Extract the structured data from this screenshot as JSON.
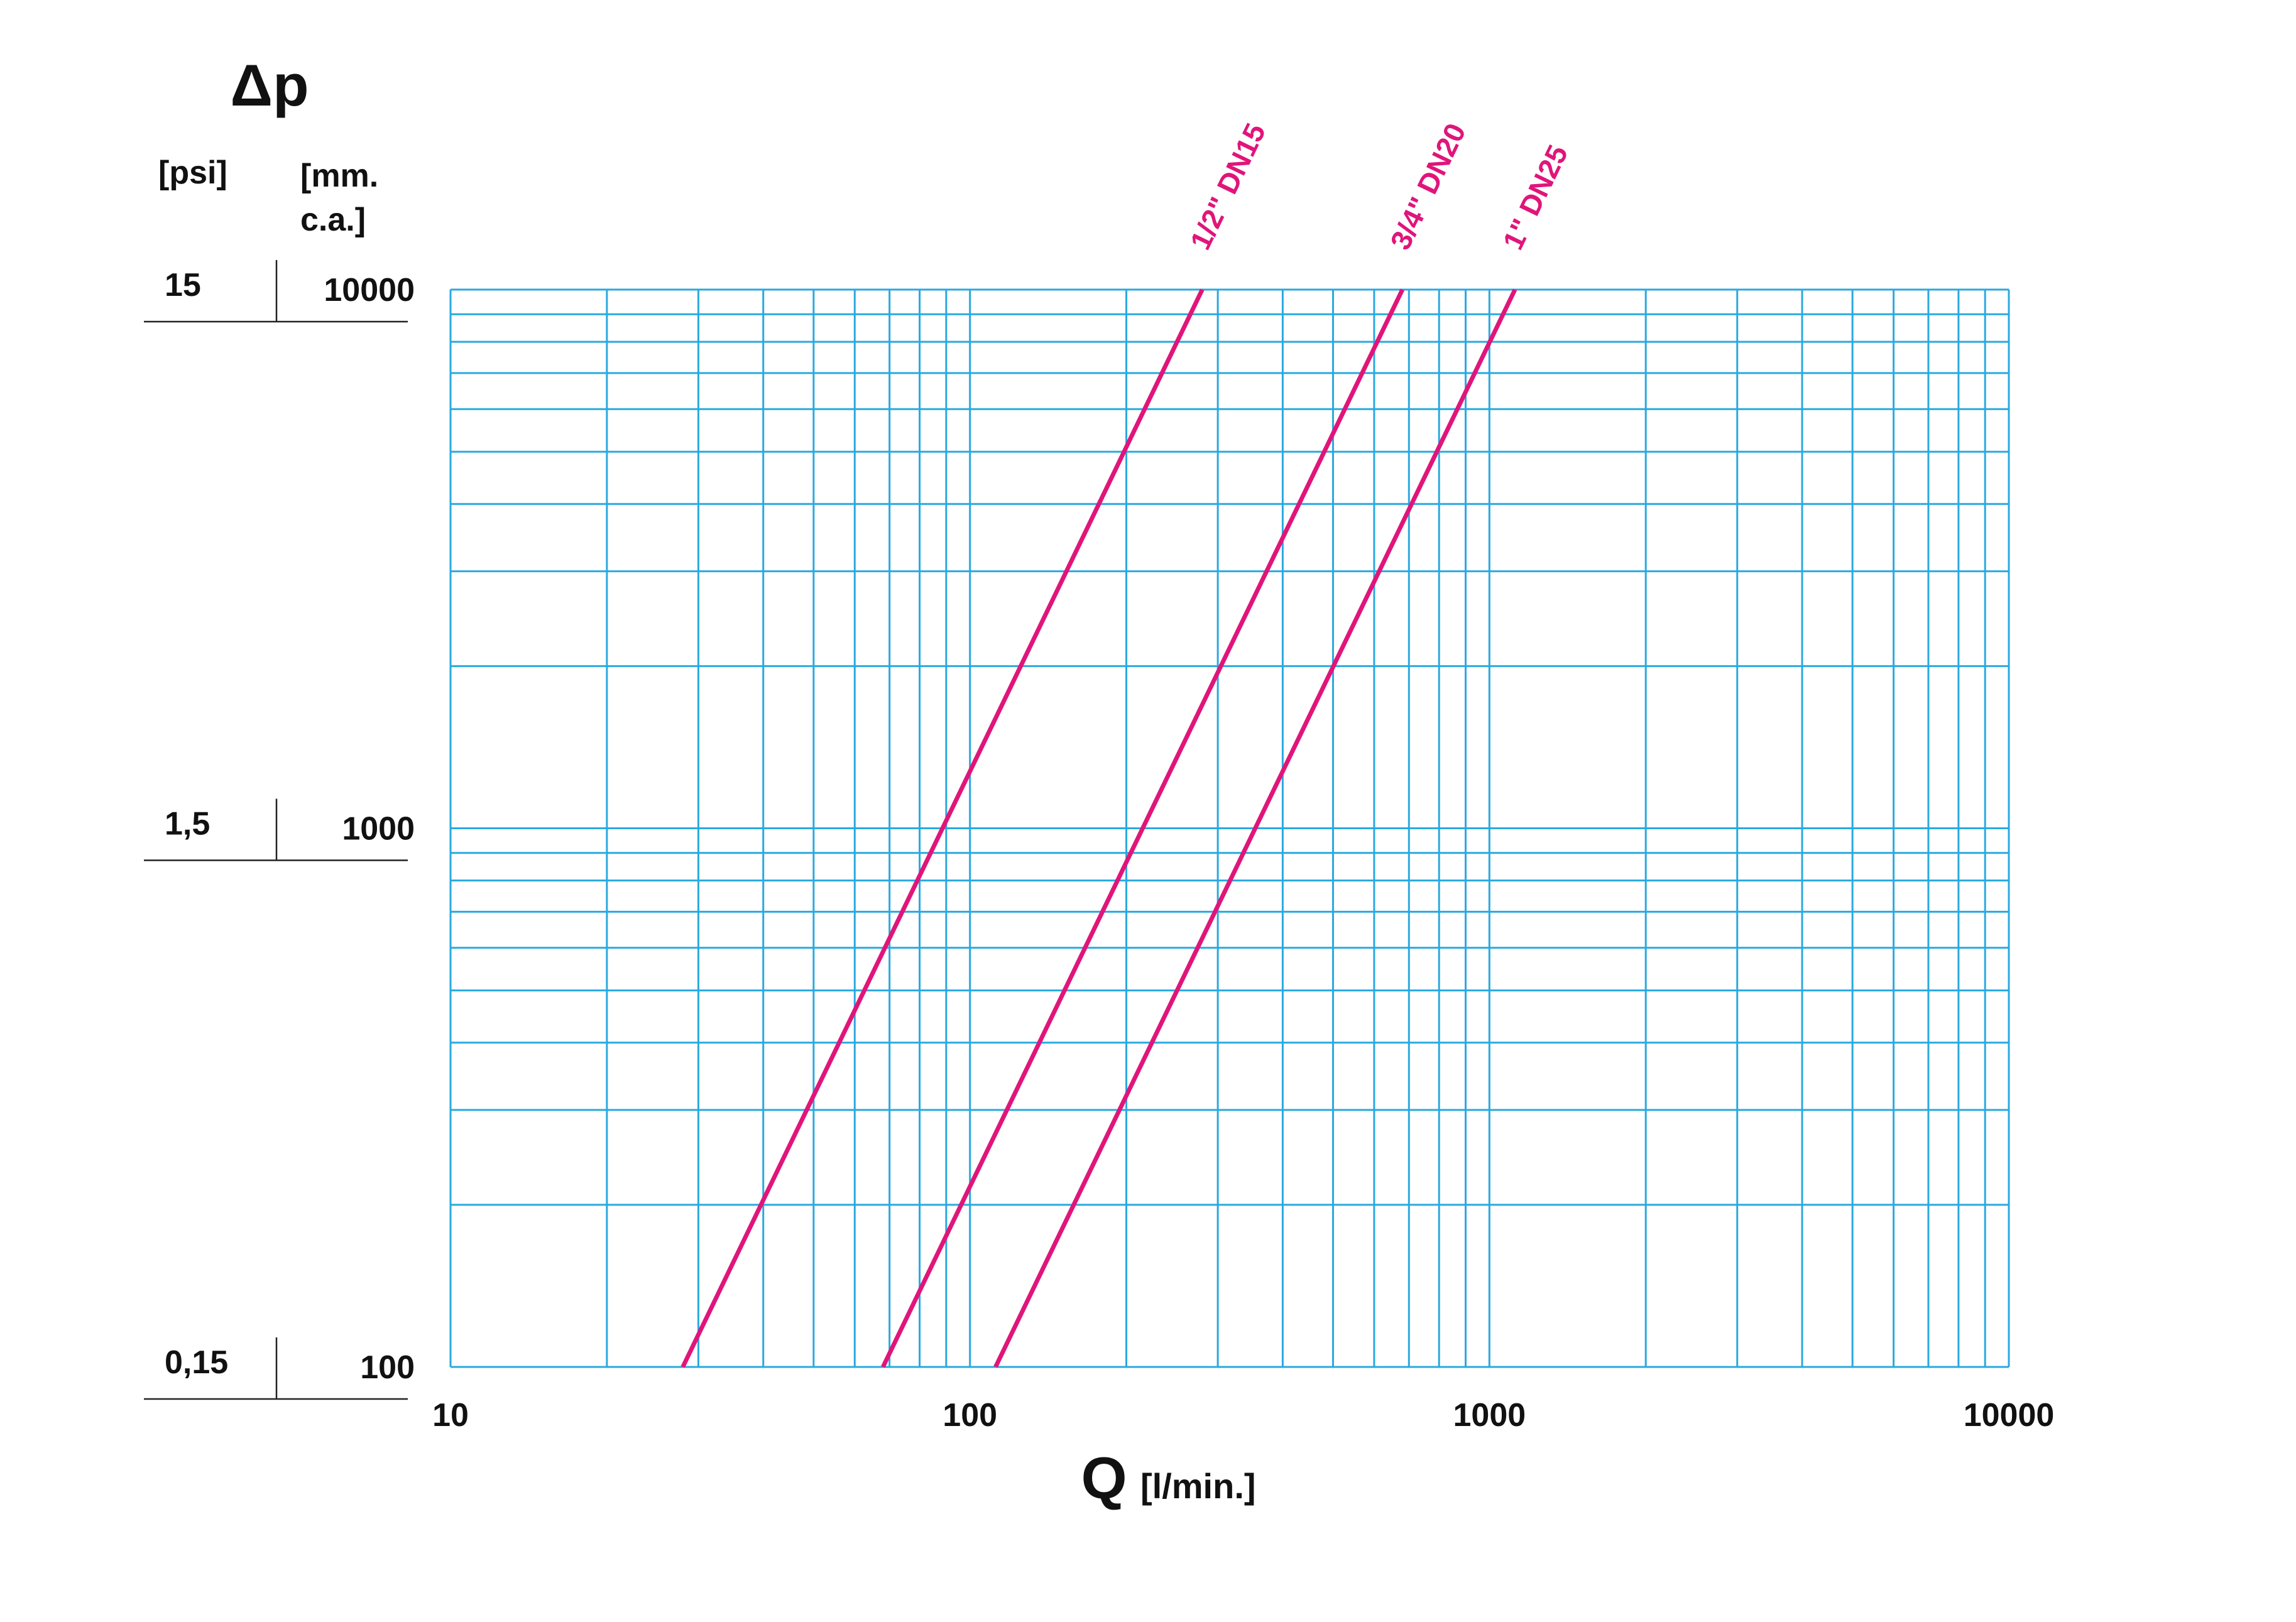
{
  "chart_data": {
    "type": "line",
    "title": "Δp",
    "y_unit_label": "[mm. c.a.]",
    "y2_unit_label": "[psi]",
    "x_label": "Q",
    "x_unit_label": "[l/min.]",
    "xscale": "log",
    "yscale": "log",
    "grid": true,
    "grid_color": "#29a9e0",
    "xlim": [
      10,
      10000
    ],
    "xticks": [
      10,
      100,
      1000,
      10000
    ],
    "xminorticks": [
      20,
      30,
      40,
      50,
      60,
      70,
      80,
      90,
      200,
      300,
      400,
      500,
      600,
      700,
      800,
      900,
      2000,
      3000,
      4000,
      5000,
      6000,
      7000,
      8000,
      9000
    ],
    "ylim": [
      100,
      10000
    ],
    "yticks": [
      100,
      1000,
      10000
    ],
    "yminorticks": [
      200,
      300,
      400,
      500,
      600,
      700,
      800,
      900,
      2000,
      3000,
      4000,
      5000,
      6000,
      7000,
      8000,
      9000
    ],
    "y2lim": [
      0.15,
      15
    ],
    "y2ticks": [
      {
        "value": 0.15,
        "label": "0,15"
      },
      {
        "value": 1.5,
        "label": "1,5"
      },
      15
    ],
    "series": [
      {
        "name": "1/2\" DN15",
        "color": "#e0157a",
        "x": [
          28,
          280
        ],
        "values": [
          100,
          10000
        ]
      },
      {
        "name": "3/4\" DN20",
        "color": "#e0157a",
        "x": [
          68,
          680
        ],
        "values": [
          100,
          10000
        ]
      },
      {
        "name": "1\" DN25",
        "color": "#e0157a",
        "x": [
          112,
          1120
        ],
        "values": [
          100,
          10000
        ]
      }
    ]
  }
}
